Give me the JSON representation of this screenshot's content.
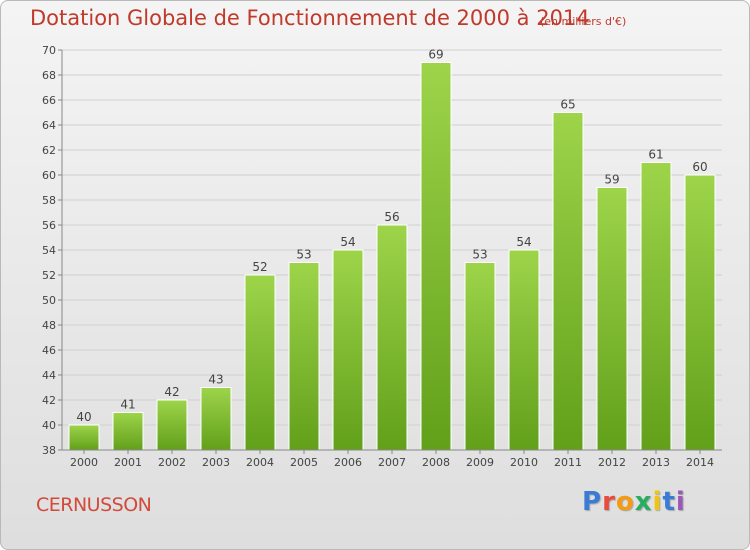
{
  "header": {
    "title": "Dotation Globale de Fonctionnement de 2000 à 2014",
    "subtitle": "(en milliers d'€)"
  },
  "footer": {
    "city": "CERNUSSON",
    "logo": {
      "letters": [
        "P",
        "r",
        "o",
        "x",
        "i",
        "t",
        "i"
      ]
    }
  },
  "colors": {
    "title": "#c0392b",
    "bar_top": "#9dd44a",
    "bar_bottom": "#62a01a",
    "grid": "#d0d0d0"
  },
  "chart_data": {
    "type": "bar",
    "title": "Dotation Globale de Fonctionnement de 2000 à 2014",
    "subtitle": "(en milliers d'€)",
    "categories": [
      "2000",
      "2001",
      "2002",
      "2003",
      "2004",
      "2005",
      "2006",
      "2007",
      "2008",
      "2009",
      "2010",
      "2011",
      "2012",
      "2013",
      "2014"
    ],
    "values": [
      40,
      41,
      42,
      43,
      52,
      53,
      54,
      56,
      69,
      53,
      54,
      65,
      59,
      61,
      60
    ],
    "ylim": [
      38,
      70
    ],
    "yticks": [
      38,
      40,
      42,
      44,
      46,
      48,
      50,
      52,
      54,
      56,
      58,
      60,
      62,
      64,
      66,
      68,
      70
    ],
    "grid": true,
    "data_labels": true
  }
}
